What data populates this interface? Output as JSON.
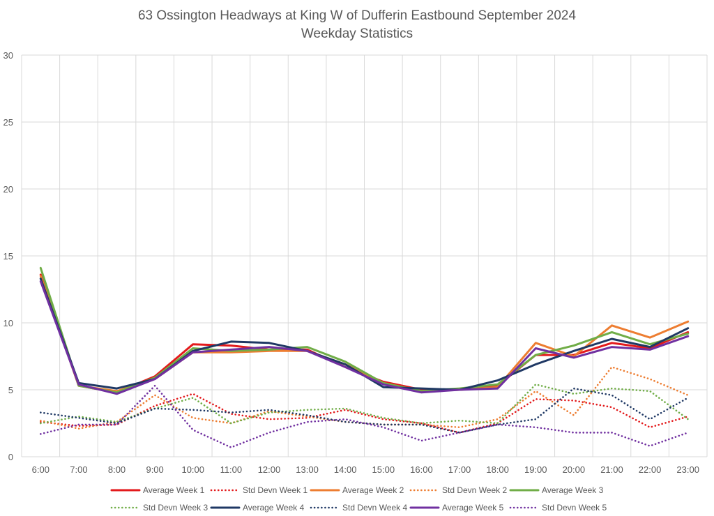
{
  "chart_data": {
    "type": "line",
    "title": "63 Ossington Headways at King W of Dufferin Eastbound September 2024",
    "subtitle": "Weekday Statistics",
    "xlabel": "",
    "ylabel": "",
    "ylim": [
      0,
      30
    ],
    "yticks": [
      0,
      5,
      10,
      15,
      20,
      25,
      30
    ],
    "grid": true,
    "legend_position": "bottom",
    "categories": [
      "6:00",
      "7:00",
      "8:00",
      "9:00",
      "10:00",
      "11:00",
      "12:00",
      "13:00",
      "14:00",
      "15:00",
      "16:00",
      "17:00",
      "18:00",
      "19:00",
      "20:00",
      "21:00",
      "22:00",
      "23:00"
    ],
    "series": [
      {
        "name": "Average Week 1",
        "style": "solid",
        "color": "#e31a1c",
        "values": [
          13.6,
          5.3,
          4.8,
          6.0,
          8.4,
          8.3,
          8.0,
          8.0,
          6.7,
          5.6,
          5.0,
          5.0,
          5.3,
          7.6,
          7.6,
          8.5,
          8.1,
          9.3
        ]
      },
      {
        "name": "Std Devn Week 1",
        "style": "dotted",
        "color": "#e31a1c",
        "values": [
          2.6,
          2.3,
          2.4,
          3.8,
          4.7,
          3.2,
          2.8,
          2.9,
          3.5,
          2.8,
          2.5,
          1.8,
          2.5,
          4.3,
          4.2,
          3.7,
          2.2,
          3.0
        ]
      },
      {
        "name": "Average Week 2",
        "style": "solid",
        "color": "#ed7d31",
        "values": [
          13.5,
          5.3,
          4.9,
          5.8,
          7.8,
          7.8,
          7.9,
          7.9,
          6.9,
          5.5,
          4.9,
          5.0,
          5.2,
          8.5,
          7.5,
          9.8,
          8.9,
          10.1
        ]
      },
      {
        "name": "Std Devn Week 2",
        "style": "dotted",
        "color": "#ed7d31",
        "values": [
          2.7,
          2.1,
          2.6,
          4.6,
          2.9,
          2.5,
          3.4,
          3.0,
          2.6,
          2.4,
          2.4,
          2.2,
          2.8,
          4.9,
          3.1,
          6.7,
          5.8,
          4.6
        ]
      },
      {
        "name": "Average Week 3",
        "style": "solid",
        "color": "#70ad47",
        "values": [
          14.1,
          5.3,
          4.8,
          5.9,
          8.1,
          7.9,
          8.0,
          8.2,
          7.1,
          5.5,
          4.9,
          5.1,
          5.4,
          7.6,
          8.3,
          9.3,
          8.4,
          9.2
        ]
      },
      {
        "name": "Std Devn Week 3",
        "style": "dotted",
        "color": "#70ad47",
        "values": [
          2.5,
          3.0,
          2.6,
          3.6,
          4.4,
          2.5,
          3.3,
          3.5,
          3.6,
          2.9,
          2.5,
          2.7,
          2.5,
          5.4,
          4.7,
          5.1,
          4.9,
          2.8
        ]
      },
      {
        "name": "Average Week 4",
        "style": "solid",
        "color": "#1f3864",
        "values": [
          13.3,
          5.5,
          5.1,
          5.8,
          7.9,
          8.6,
          8.5,
          7.9,
          6.9,
          5.2,
          5.1,
          5.0,
          5.7,
          6.9,
          7.9,
          8.8,
          8.2,
          9.6
        ]
      },
      {
        "name": "Std Devn Week 4",
        "style": "dotted",
        "color": "#1f3864",
        "values": [
          3.3,
          2.9,
          2.5,
          3.6,
          3.5,
          3.3,
          3.5,
          3.1,
          2.6,
          2.4,
          2.4,
          1.8,
          2.4,
          2.8,
          5.1,
          4.6,
          2.8,
          4.4
        ]
      },
      {
        "name": "Average Week 5",
        "style": "solid",
        "color": "#7030a0",
        "values": [
          13.1,
          5.4,
          4.7,
          5.8,
          7.8,
          8.0,
          8.2,
          7.9,
          6.7,
          5.4,
          4.8,
          5.0,
          5.1,
          8.1,
          7.4,
          8.2,
          8.0,
          9.0
        ]
      },
      {
        "name": "Std Devn Week 5",
        "style": "dotted",
        "color": "#7030a0",
        "values": [
          1.7,
          2.4,
          2.4,
          5.3,
          2.0,
          0.7,
          1.8,
          2.6,
          2.8,
          2.2,
          1.2,
          1.8,
          2.4,
          2.2,
          1.8,
          1.8,
          0.8,
          1.8
        ]
      }
    ]
  }
}
